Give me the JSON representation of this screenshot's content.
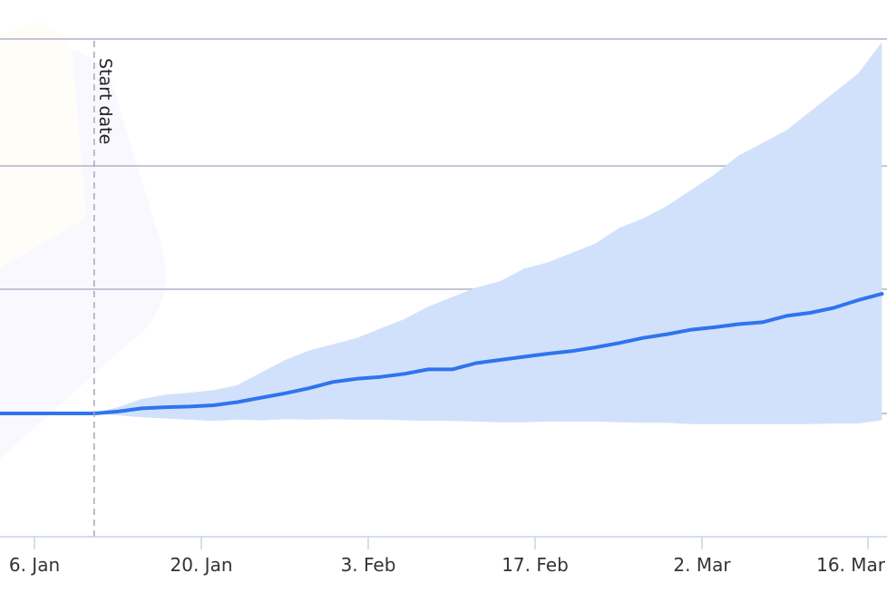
{
  "chart_data": {
    "type": "area",
    "x_axis": {
      "ticks": [
        "6. Jan",
        "20. Jan",
        "3. Feb",
        "17. Feb",
        "2. Mar",
        "16. Mar"
      ]
    },
    "annotations": [
      {
        "label": "Start date",
        "x": "2025-01-11",
        "style": "dashed vertical line"
      }
    ],
    "series": [
      {
        "type": "line",
        "color": "#2f74ee",
        "x": [
          "2025-01-01",
          "2025-01-11",
          "2025-01-13",
          "2025-01-15",
          "2025-01-17",
          "2025-01-19",
          "2025-01-21",
          "2025-01-23",
          "2025-01-25",
          "2025-01-27",
          "2025-01-29",
          "2025-01-31",
          "2025-02-02",
          "2025-02-04",
          "2025-02-06",
          "2025-02-08",
          "2025-02-10",
          "2025-02-12",
          "2025-02-14",
          "2025-02-16",
          "2025-02-18",
          "2025-02-20",
          "2025-02-22",
          "2025-02-24",
          "2025-02-26",
          "2025-02-28",
          "2025-03-02",
          "2025-03-04",
          "2025-03-06",
          "2025-03-08",
          "2025-03-10",
          "2025-03-12",
          "2025-03-14",
          "2025-03-16",
          "2025-03-18"
        ],
        "y": [
          0,
          0,
          0.03,
          0.08,
          0.1,
          0.11,
          0.13,
          0.18,
          0.25,
          0.32,
          0.4,
          0.5,
          0.55,
          0.58,
          0.63,
          0.7,
          0.7,
          0.8,
          0.85,
          0.9,
          0.95,
          0.99,
          1.05,
          1.12,
          1.2,
          1.26,
          1.33,
          1.37,
          1.42,
          1.45,
          1.55,
          1.6,
          1.68,
          1.8,
          1.9
        ]
      },
      {
        "type": "range",
        "color": "#d2e1fb",
        "x": [
          "2025-01-01",
          "2025-01-11",
          "2025-01-13",
          "2025-01-15",
          "2025-01-17",
          "2025-01-19",
          "2025-01-21",
          "2025-01-23",
          "2025-01-25",
          "2025-01-27",
          "2025-01-29",
          "2025-01-31",
          "2025-02-02",
          "2025-02-04",
          "2025-02-06",
          "2025-02-08",
          "2025-02-10",
          "2025-02-12",
          "2025-02-14",
          "2025-02-16",
          "2025-02-18",
          "2025-02-20",
          "2025-02-22",
          "2025-02-24",
          "2025-02-26",
          "2025-02-28",
          "2025-03-02",
          "2025-03-04",
          "2025-03-06",
          "2025-03-08",
          "2025-03-10",
          "2025-03-12",
          "2025-03-14",
          "2025-03-16",
          "2025-03-18"
        ],
        "low": [
          0,
          0,
          -0.03,
          -0.06,
          -0.08,
          -0.1,
          -0.12,
          -0.1,
          -0.11,
          -0.09,
          -0.1,
          -0.09,
          -0.1,
          -0.1,
          -0.11,
          -0.12,
          -0.12,
          -0.13,
          -0.14,
          -0.14,
          -0.13,
          -0.13,
          -0.13,
          -0.14,
          -0.15,
          -0.15,
          -0.17,
          -0.17,
          -0.17,
          -0.17,
          -0.17,
          -0.17,
          -0.16,
          -0.16,
          -0.11
        ],
        "high": [
          0,
          0,
          0.1,
          0.23,
          0.3,
          0.33,
          0.37,
          0.45,
          0.65,
          0.85,
          1.0,
          1.1,
          1.2,
          1.35,
          1.5,
          1.7,
          1.85,
          2.0,
          2.1,
          2.3,
          2.4,
          2.55,
          2.7,
          2.95,
          3.1,
          3.3,
          3.55,
          3.8,
          4.1,
          4.3,
          4.5,
          4.8,
          5.1,
          5.4,
          5.9
        ]
      }
    ]
  }
}
